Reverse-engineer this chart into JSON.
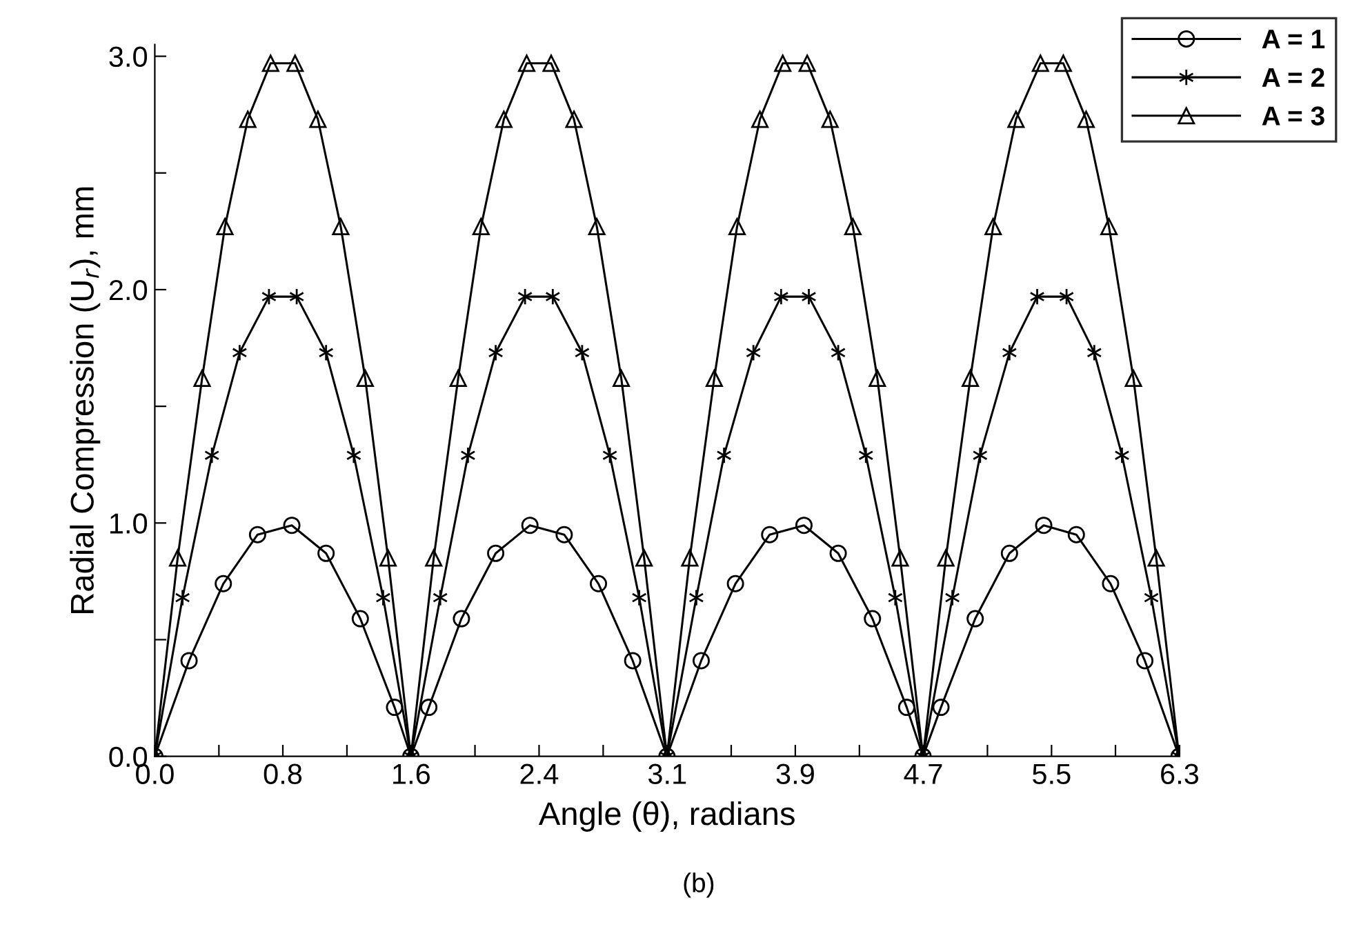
{
  "chart_data": {
    "type": "line",
    "xlabel": "Angle (θ), radians",
    "ylabel": "Radial Compression (U$_{r}$), mm",
    "annotations": [
      "(b)"
    ],
    "xlim": [
      0,
      6.283
    ],
    "ylim": [
      0,
      3.05
    ],
    "xticks": [
      {
        "value": 0,
        "label": "0.0"
      },
      {
        "value": 0.393,
        "label": null
      },
      {
        "value": 0.785,
        "label": "0.8"
      },
      {
        "value": 1.178,
        "label": null
      },
      {
        "value": 1.571,
        "label": "1.6"
      },
      {
        "value": 1.963,
        "label": null
      },
      {
        "value": 2.356,
        "label": "2.4"
      },
      {
        "value": 2.749,
        "label": null
      },
      {
        "value": 3.142,
        "label": "3.1"
      },
      {
        "value": 3.534,
        "label": null
      },
      {
        "value": 3.927,
        "label": "3.9"
      },
      {
        "value": 4.32,
        "label": null
      },
      {
        "value": 4.712,
        "label": "4.7"
      },
      {
        "value": 5.105,
        "label": null
      },
      {
        "value": 5.498,
        "label": "5.5"
      },
      {
        "value": 5.89,
        "label": null
      },
      {
        "value": 6.283,
        "label": "6.3"
      }
    ],
    "yticks": [
      {
        "value": 0,
        "label": "0.0"
      },
      {
        "value": 0.5,
        "label": null
      },
      {
        "value": 1,
        "label": "1.0"
      },
      {
        "value": 1.5,
        "label": null
      },
      {
        "value": 2,
        "label": "2.0"
      },
      {
        "value": 2.5,
        "label": null
      },
      {
        "value": 3,
        "label": "3.0"
      }
    ],
    "grid": false,
    "legend": "top right",
    "line_style": "solid",
    "series": [
      {
        "name": "A = 1",
        "color": "#000000",
        "marker": "circle",
        "x": [
          0,
          0.21,
          0.42,
          0.63,
          0.84,
          1.05,
          1.26,
          1.47,
          1.57,
          1.68,
          1.88,
          2.09,
          2.3,
          2.51,
          2.72,
          2.93,
          3.14,
          3.35,
          3.56,
          3.77,
          3.98,
          4.19,
          4.4,
          4.61,
          4.71,
          4.82,
          5.03,
          5.24,
          5.45,
          5.65,
          5.86,
          6.07,
          6.28
        ],
        "values": [
          0,
          0.41,
          0.74,
          0.95,
          0.99,
          0.87,
          0.59,
          0.21,
          0,
          0.21,
          0.59,
          0.87,
          0.99,
          0.95,
          0.74,
          0.41,
          0,
          0.41,
          0.74,
          0.95,
          0.99,
          0.87,
          0.59,
          0.21,
          0,
          0.21,
          0.59,
          0.87,
          0.99,
          0.95,
          0.74,
          0.41,
          0
        ]
      },
      {
        "name": "A = 2",
        "color": "#000000",
        "marker": "cross",
        "x": [
          0,
          0.17,
          0.35,
          0.52,
          0.7,
          0.87,
          1.05,
          1.22,
          1.4,
          1.57,
          1.75,
          1.92,
          2.09,
          2.27,
          2.44,
          2.62,
          2.79,
          2.97,
          3.14,
          3.32,
          3.49,
          3.67,
          3.84,
          4.01,
          4.19,
          4.36,
          4.54,
          4.71,
          4.89,
          5.06,
          5.24,
          5.41,
          5.59,
          5.76,
          5.93,
          6.11,
          6.28
        ],
        "values": [
          0,
          0.68,
          1.29,
          1.73,
          1.97,
          1.97,
          1.73,
          1.29,
          0.68,
          0,
          0.68,
          1.29,
          1.73,
          1.97,
          1.97,
          1.73,
          1.29,
          0.68,
          0,
          0.68,
          1.29,
          1.73,
          1.97,
          1.97,
          1.73,
          1.29,
          0.68,
          0,
          0.68,
          1.29,
          1.73,
          1.97,
          1.97,
          1.73,
          1.29,
          0.68,
          0
        ]
      },
      {
        "name": "A = 3",
        "color": "#000000",
        "marker": "triangle",
        "x": [
          0,
          0.14,
          0.29,
          0.43,
          0.57,
          0.71,
          0.86,
          1.0,
          1.14,
          1.29,
          1.43,
          1.57,
          1.71,
          1.86,
          2.0,
          2.14,
          2.28,
          2.43,
          2.57,
          2.71,
          2.86,
          3.0,
          3.14,
          3.28,
          3.43,
          3.57,
          3.71,
          3.85,
          4.0,
          4.14,
          4.28,
          4.43,
          4.57,
          4.71,
          4.85,
          5.0,
          5.14,
          5.28,
          5.43,
          5.57,
          5.71,
          5.85,
          6.0,
          6.14,
          6.28
        ],
        "values": [
          0,
          0.85,
          1.62,
          2.27,
          2.73,
          2.97,
          2.97,
          2.73,
          2.27,
          1.62,
          0.85,
          0,
          0.85,
          1.62,
          2.27,
          2.73,
          2.97,
          2.97,
          2.73,
          2.27,
          1.62,
          0.85,
          0,
          0.85,
          1.62,
          2.27,
          2.73,
          2.97,
          2.97,
          2.73,
          2.27,
          1.62,
          0.85,
          0,
          0.85,
          1.62,
          2.27,
          2.73,
          2.97,
          2.97,
          2.73,
          2.27,
          1.62,
          0.85,
          0
        ]
      }
    ]
  }
}
